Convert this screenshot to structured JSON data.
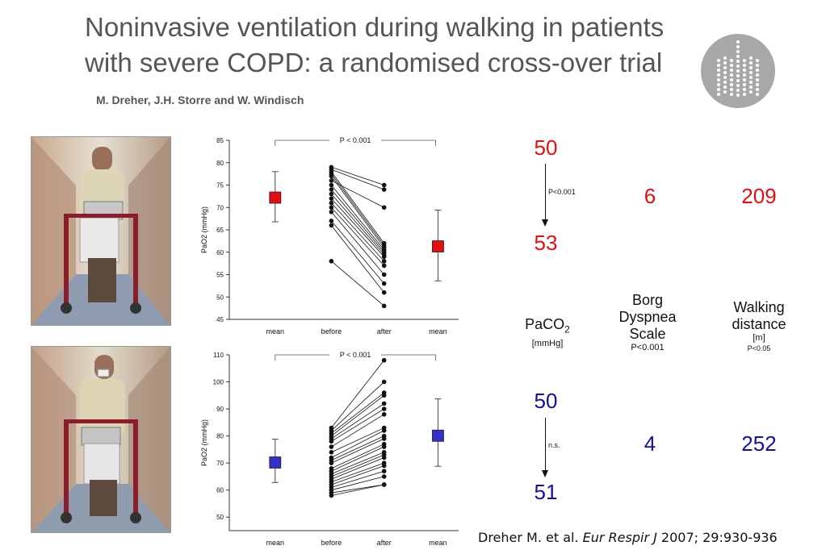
{
  "header": {
    "title": "Noninvasive ventilation during walking in patients with severe COPD: a randomised cross-over trial",
    "authors": "M. Dreher, J.H. Storre and W. Windisch"
  },
  "colors": {
    "red": "#e01010",
    "blue": "#11119c"
  },
  "photos": [
    {
      "name": "patient-walking-without-niv-photo"
    },
    {
      "name": "patient-walking-with-niv-photo"
    }
  ],
  "chart_data": [
    {
      "type": "scatter",
      "ylabel": "PaO2 (mmHg)",
      "ylim": [
        45,
        85
      ],
      "yticks": [
        45,
        50,
        55,
        60,
        65,
        70,
        75,
        80,
        85
      ],
      "categories": [
        "mean",
        "before",
        "after",
        "mean"
      ],
      "significance": "P < 0.001",
      "mean_before": {
        "value": 72.2,
        "error_low": 66.8,
        "error_high": 78.0,
        "color": "#e01010"
      },
      "mean_after": {
        "value": 61.3,
        "error_low": 53.6,
        "error_high": 69.4,
        "color": "#e01010"
      },
      "pairs": [
        [
          79,
          75
        ],
        [
          78.5,
          74
        ],
        [
          78,
          62
        ],
        [
          77.5,
          61.5
        ],
        [
          77,
          61
        ],
        [
          76,
          70
        ],
        [
          75,
          60.5
        ],
        [
          74,
          60
        ],
        [
          73,
          59.5
        ],
        [
          72,
          59
        ],
        [
          71,
          58
        ],
        [
          70,
          57
        ],
        [
          69,
          55
        ],
        [
          67,
          53
        ],
        [
          66,
          51
        ],
        [
          58,
          48
        ]
      ]
    },
    {
      "type": "scatter",
      "ylabel": "PaO2 (mmHg)",
      "ylim": [
        45,
        110
      ],
      "yticks": [
        50,
        60,
        70,
        80,
        90,
        100,
        110
      ],
      "categories": [
        "mean",
        "before",
        "after",
        "mean"
      ],
      "significance": "P < 0.001",
      "mean_before": {
        "value": 70.2,
        "error_low": 62.8,
        "error_high": 78.8,
        "color": "#3232c8"
      },
      "mean_after": {
        "value": 80.1,
        "error_low": 68.8,
        "error_high": 93.7,
        "color": "#3232c8"
      },
      "pairs": [
        [
          83,
          108
        ],
        [
          82,
          100
        ],
        [
          81,
          96
        ],
        [
          80,
          95
        ],
        [
          79,
          92
        ],
        [
          78,
          90
        ],
        [
          76,
          88
        ],
        [
          74,
          83
        ],
        [
          72,
          82
        ],
        [
          71,
          80
        ],
        [
          70,
          79
        ],
        [
          68,
          77
        ],
        [
          67,
          76
        ],
        [
          66,
          74
        ],
        [
          65,
          73
        ],
        [
          64,
          72
        ],
        [
          63,
          70
        ],
        [
          62,
          69
        ],
        [
          61,
          67
        ],
        [
          60,
          65
        ],
        [
          59,
          62
        ],
        [
          58,
          62
        ]
      ]
    }
  ],
  "summary": {
    "paco2": {
      "label": "PaCO",
      "sub": "2",
      "unit": "[mmHg]",
      "top_before": "50",
      "top_after": "53",
      "top_p": "P<0.001",
      "bottom_before": "50",
      "bottom_after": "51",
      "bottom_p": "n.s."
    },
    "borg": {
      "label_line1": "Borg",
      "label_line2": "Dyspnea",
      "label_line3": "Scale",
      "p": "P<0.001",
      "top_value": "6",
      "bottom_value": "4"
    },
    "walk": {
      "label_line1": "Walking",
      "label_line2": "distance",
      "unit": "[m]",
      "p": "P<0.05",
      "top_value": "209",
      "bottom_value": "252"
    }
  },
  "citation": {
    "authors": "Dreher M. et al. ",
    "journal": "Eur Respir J",
    "rest": " 2007; 29:930-936"
  }
}
